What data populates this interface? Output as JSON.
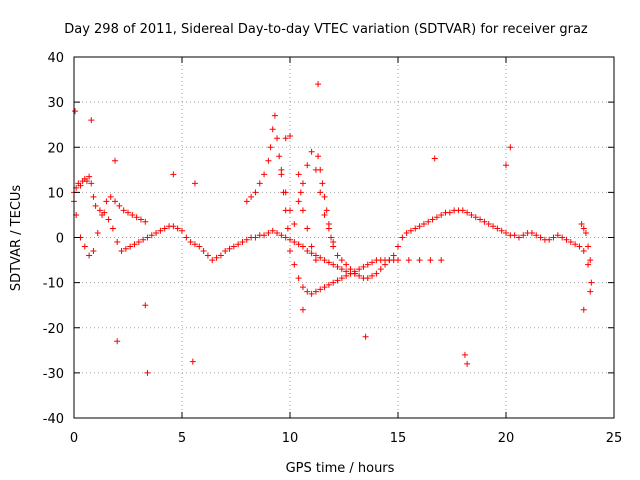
{
  "chart_data": {
    "type": "scatter",
    "title": "Day 298 of 2011, Sidereal Day-to-day VTEC variation (SDTVAR) for receiver graz",
    "xlabel": "GPS time / hours",
    "ylabel": "SDTVAR / TECUs",
    "xlim": [
      0,
      25
    ],
    "ylim": [
      -40,
      40
    ],
    "xticks": [
      "0",
      "5",
      "10",
      "15",
      "20",
      "25"
    ],
    "yticks": [
      "40",
      "30",
      "20",
      "10",
      "0",
      "-10",
      "-20",
      "-30",
      "-40"
    ],
    "grid": true,
    "marker": "+",
    "series_color": "#ff0000",
    "series": [
      {
        "name": "SDTVAR",
        "x": [
          0.0,
          0.1,
          0.2,
          0.3,
          0.4,
          0.5,
          0.6,
          0.7,
          0.8,
          0.9,
          1.0,
          1.2,
          1.4,
          1.6,
          1.8,
          2.0,
          2.2,
          2.4,
          2.6,
          2.8,
          3.0,
          3.2,
          3.4,
          3.6,
          3.8,
          4.0,
          4.2,
          4.4,
          4.6,
          4.8,
          5.0,
          5.2,
          5.4,
          5.6,
          5.8,
          6.0,
          6.2,
          6.4,
          6.6,
          6.8,
          7.0,
          7.2,
          7.4,
          7.6,
          7.8,
          8.0,
          8.2,
          8.4,
          8.6,
          8.8,
          9.0,
          9.2,
          9.4,
          9.6,
          9.8,
          10.0,
          10.2,
          10.4,
          10.6,
          10.8,
          11.0,
          11.2,
          11.4,
          11.6,
          11.8,
          12.0,
          12.2,
          12.4,
          12.6,
          12.8,
          13.0,
          13.2,
          13.4,
          13.6,
          13.8,
          14.0,
          14.2,
          14.4,
          14.6,
          14.8,
          15.0,
          15.2,
          15.4,
          15.6,
          15.8,
          16.0,
          16.2,
          16.4,
          16.6,
          16.8,
          17.0,
          17.2,
          17.4,
          17.6,
          17.8,
          18.0,
          18.2,
          18.4,
          18.6,
          18.8,
          19.0,
          19.2,
          19.4,
          19.6,
          19.8,
          20.0,
          20.2,
          20.4,
          20.6,
          20.8,
          21.0,
          21.2,
          21.4,
          21.6,
          21.8,
          22.0,
          22.2,
          22.4,
          22.6,
          22.8,
          23.0,
          23.2,
          23.4,
          23.6,
          23.8,
          23.9,
          0.0,
          0.1,
          0.3,
          0.5,
          0.7,
          0.9,
          1.1,
          1.3,
          1.5,
          1.7,
          1.9,
          2.1,
          2.3,
          2.5,
          2.7,
          2.9,
          3.1,
          3.3,
          8.0,
          8.2,
          8.4,
          8.6,
          8.8,
          9.0,
          9.1,
          9.2,
          9.3,
          9.4,
          9.5,
          9.6,
          9.7,
          9.8,
          9.9,
          10.0,
          10.2,
          10.4,
          10.6,
          10.8,
          11.0,
          11.2,
          11.4,
          11.6,
          11.8,
          12.0,
          12.2,
          12.4,
          12.6,
          12.8,
          13.0,
          13.2,
          13.4,
          13.6,
          13.8,
          14.0,
          14.2,
          14.4,
          14.6,
          14.8,
          15.0,
          15.5,
          16.0,
          16.5,
          17.0,
          9.6,
          9.8,
          10.0,
          10.2,
          10.4,
          10.6,
          10.8,
          11.0,
          11.2,
          11.4,
          11.6,
          11.8,
          12.0,
          11.3,
          11.4,
          11.5,
          11.6,
          11.7,
          11.8,
          11.9,
          12.0,
          12.2,
          12.4,
          12.6,
          12.8,
          13.0,
          10.4,
          10.5,
          10.6,
          10.8,
          11.0,
          11.2,
          23.5,
          23.6,
          23.7,
          23.8,
          23.9,
          23.95,
          0.05,
          0.8,
          1.9,
          2.0,
          3.3,
          3.4,
          4.6,
          5.6,
          5.5,
          9.8,
          10.0,
          10.6,
          11.3,
          13.5,
          16.7,
          18.1,
          18.2,
          20.0,
          20.2,
          23.6
        ],
        "y": [
          10.0,
          11.0,
          12.0,
          11.5,
          12.5,
          13.0,
          12.5,
          13.5,
          12.0,
          9.0,
          7.0,
          6.0,
          5.5,
          4.0,
          2.0,
          -1.0,
          -3.0,
          -2.5,
          -2.0,
          -1.5,
          -1.0,
          -0.5,
          0.0,
          0.5,
          1.0,
          1.5,
          2.0,
          2.5,
          2.5,
          2.0,
          1.5,
          0.0,
          -1.0,
          -1.5,
          -2.0,
          -3.0,
          -4.0,
          -5.0,
          -4.5,
          -4.0,
          -3.0,
          -2.5,
          -2.0,
          -1.5,
          -1.0,
          -0.5,
          0.0,
          0.0,
          0.5,
          0.5,
          1.0,
          1.5,
          1.0,
          0.5,
          0.0,
          -0.5,
          -1.0,
          -1.5,
          -2.0,
          -3.0,
          -3.5,
          -4.0,
          -4.5,
          -5.0,
          -5.5,
          -6.0,
          -6.5,
          -7.0,
          -7.5,
          -8.0,
          -8.0,
          -8.5,
          -9.0,
          -9.0,
          -8.5,
          -8.0,
          -7.0,
          -6.0,
          -5.0,
          -4.0,
          -2.0,
          0.0,
          1.0,
          1.5,
          2.0,
          2.5,
          3.0,
          3.5,
          4.0,
          4.5,
          5.0,
          5.5,
          5.5,
          6.0,
          6.0,
          6.0,
          5.5,
          5.0,
          4.5,
          4.0,
          3.5,
          3.0,
          2.5,
          2.0,
          1.5,
          1.0,
          0.5,
          0.5,
          0.0,
          0.5,
          1.0,
          1.0,
          0.5,
          0.0,
          -0.5,
          -0.5,
          0.0,
          0.5,
          0.0,
          -0.5,
          -1.0,
          -1.5,
          -2.0,
          -3.0,
          -6.0,
          -12.0,
          8.0,
          5.0,
          0.0,
          -2.0,
          -4.0,
          -3.0,
          1.0,
          5.0,
          8.0,
          9.0,
          8.0,
          7.0,
          6.0,
          5.5,
          5.0,
          4.5,
          4.0,
          3.5,
          8.0,
          9.0,
          10.0,
          12.0,
          14.0,
          17.0,
          20.0,
          24.0,
          27.0,
          22.0,
          18.0,
          14.0,
          10.0,
          6.0,
          2.0,
          -3.0,
          -6.0,
          -9.0,
          -11.0,
          -12.0,
          -12.5,
          -12.0,
          -11.5,
          -11.0,
          -10.5,
          -10.0,
          -9.5,
          -9.0,
          -8.5,
          -8.0,
          -7.5,
          -7.0,
          -6.5,
          -6.0,
          -5.5,
          -5.0,
          -5.0,
          -5.0,
          -5.0,
          -5.0,
          -5.0,
          -5.0,
          -5.0,
          -5.0,
          -5.0,
          15.0,
          10.0,
          6.0,
          3.0,
          8.0,
          12.0,
          16.0,
          19.0,
          15.0,
          10.0,
          5.0,
          2.0,
          -1.0,
          18.0,
          15.0,
          12.0,
          9.0,
          6.0,
          3.0,
          0.0,
          -2.0,
          -4.0,
          -5.0,
          -6.0,
          -7.0,
          -8.0,
          14.0,
          10.0,
          6.0,
          2.0,
          -2.0,
          -5.0,
          3.0,
          2.0,
          1.0,
          -2.0,
          -5.0,
          -10.0,
          28.0,
          26.0,
          17.0,
          -23.0,
          -15.0,
          -30.0,
          14.0,
          12.0,
          -27.5,
          22.0,
          22.5,
          -16.0,
          34.0,
          -22.0,
          17.5,
          -26.0,
          -28.0,
          16.0,
          20.0,
          -16.0
        ]
      }
    ]
  }
}
